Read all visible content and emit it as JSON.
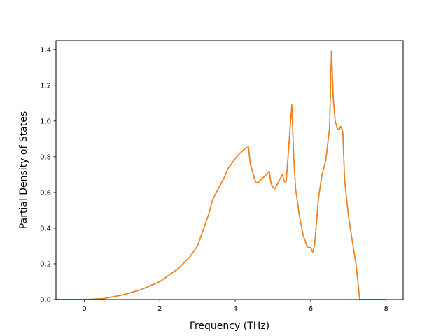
{
  "chart_data": {
    "type": "line",
    "title": "",
    "xlabel": "Frequency (THz)",
    "ylabel": "Partial Density of States",
    "xlim": [
      -0.75,
      8.45
    ],
    "ylim": [
      0.0,
      1.45
    ],
    "xticks": [
      0,
      2,
      4,
      6,
      8
    ],
    "xtick_labels": [
      "0",
      "2",
      "4",
      "6",
      "8"
    ],
    "yticks": [
      0.0,
      0.2,
      0.4,
      0.6,
      0.8,
      1.0,
      1.2,
      1.4
    ],
    "ytick_labels": [
      "0.0",
      "0.2",
      "0.4",
      "0.6",
      "0.8",
      "1.0",
      "1.2",
      "1.4"
    ],
    "grid": false,
    "legend": "none",
    "series": [
      {
        "color": "#1f77b4",
        "x": [
          -0.75,
          0.0,
          0.5,
          1.0,
          1.5,
          2.0,
          2.5,
          2.8,
          3.0,
          3.2,
          3.3,
          3.4,
          3.5,
          3.6,
          3.7,
          3.8,
          3.9,
          4.0,
          4.1,
          4.2,
          4.3,
          4.35,
          4.4,
          4.5,
          4.55,
          4.6,
          4.7,
          4.8,
          4.9,
          4.95,
          5.0,
          5.05,
          5.1,
          5.15,
          5.25,
          5.3,
          5.35,
          5.4,
          5.45,
          5.5,
          5.55,
          5.6,
          5.7,
          5.8,
          5.9,
          5.95,
          6.0,
          6.05,
          6.1,
          6.15,
          6.2,
          6.3,
          6.4,
          6.5,
          6.55,
          6.6,
          6.65,
          6.7,
          6.75,
          6.8,
          6.85,
          6.9,
          7.0,
          7.1,
          7.2,
          7.3,
          7.35,
          8.0
        ],
        "y": [
          0.0,
          0.0,
          0.005,
          0.025,
          0.055,
          0.1,
          0.175,
          0.24,
          0.3,
          0.42,
          0.48,
          0.56,
          0.6,
          0.64,
          0.68,
          0.73,
          0.76,
          0.79,
          0.815,
          0.835,
          0.85,
          0.855,
          0.76,
          0.685,
          0.655,
          0.655,
          0.675,
          0.695,
          0.72,
          0.65,
          0.63,
          0.62,
          0.64,
          0.66,
          0.7,
          0.66,
          0.66,
          0.8,
          0.95,
          1.09,
          0.8,
          0.62,
          0.47,
          0.36,
          0.3,
          0.29,
          0.29,
          0.265,
          0.3,
          0.42,
          0.56,
          0.7,
          0.78,
          0.96,
          1.39,
          1.12,
          1.0,
          0.96,
          0.95,
          0.97,
          0.94,
          0.67,
          0.47,
          0.33,
          0.2,
          0.0,
          0.0,
          0.0
        ]
      },
      {
        "color": "#ff7f0e",
        "x": [
          -0.75,
          0.0,
          0.5,
          1.0,
          1.5,
          2.0,
          2.5,
          2.8,
          3.0,
          3.2,
          3.3,
          3.4,
          3.5,
          3.6,
          3.7,
          3.8,
          3.9,
          4.0,
          4.1,
          4.2,
          4.3,
          4.35,
          4.4,
          4.5,
          4.55,
          4.6,
          4.7,
          4.8,
          4.9,
          4.95,
          5.0,
          5.05,
          5.1,
          5.15,
          5.25,
          5.3,
          5.35,
          5.4,
          5.45,
          5.5,
          5.55,
          5.6,
          5.7,
          5.8,
          5.9,
          5.95,
          6.0,
          6.05,
          6.1,
          6.15,
          6.2,
          6.3,
          6.4,
          6.5,
          6.55,
          6.6,
          6.65,
          6.7,
          6.75,
          6.8,
          6.85,
          6.9,
          7.0,
          7.1,
          7.2,
          7.3,
          7.35,
          8.0
        ],
        "y": [
          0.0,
          0.0,
          0.005,
          0.025,
          0.055,
          0.1,
          0.175,
          0.24,
          0.3,
          0.42,
          0.48,
          0.56,
          0.6,
          0.64,
          0.68,
          0.73,
          0.76,
          0.79,
          0.815,
          0.835,
          0.85,
          0.855,
          0.76,
          0.685,
          0.655,
          0.655,
          0.675,
          0.695,
          0.72,
          0.65,
          0.63,
          0.62,
          0.64,
          0.66,
          0.7,
          0.66,
          0.66,
          0.8,
          0.95,
          1.09,
          0.8,
          0.62,
          0.47,
          0.36,
          0.3,
          0.29,
          0.29,
          0.265,
          0.3,
          0.42,
          0.56,
          0.7,
          0.78,
          0.96,
          1.39,
          1.12,
          1.0,
          0.96,
          0.95,
          0.97,
          0.94,
          0.67,
          0.47,
          0.33,
          0.2,
          0.0,
          0.0,
          0.0
        ]
      }
    ]
  }
}
